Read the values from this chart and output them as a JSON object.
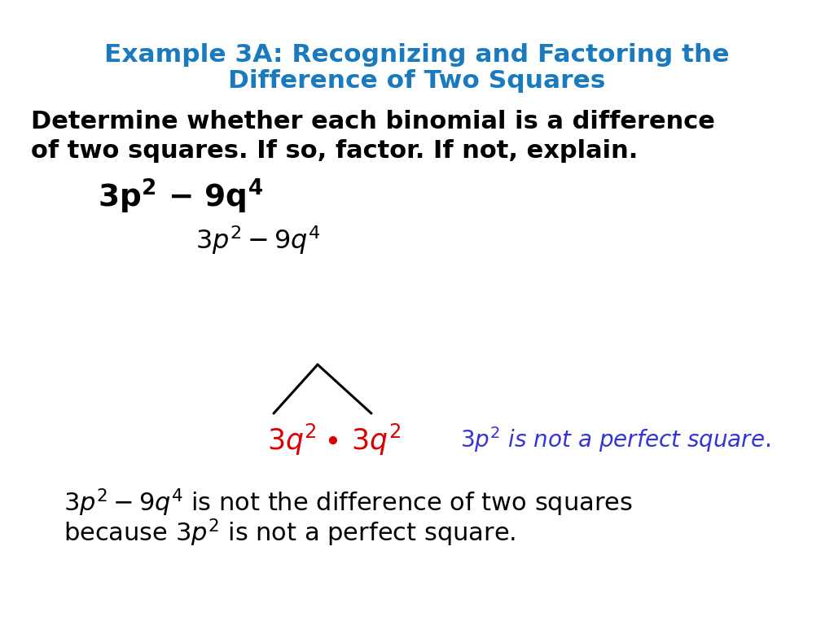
{
  "title_line1": "Example 3A: Recognizing and Factoring the",
  "title_line2": "Difference of Two Squares",
  "title_color": "#1a7abf",
  "instruction_line1": "Determine whether each binomial is a difference",
  "instruction_line2": "of two squares. If so, factor. If not, explain.",
  "bg_color": "#ffffff",
  "note_blue_color": "#3333dd",
  "red_color": "#dd0000",
  "black_color": "#000000"
}
